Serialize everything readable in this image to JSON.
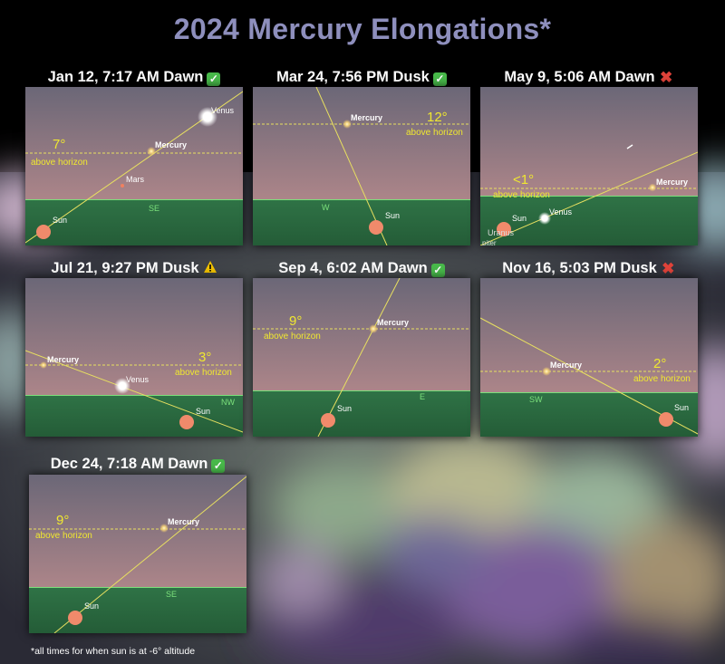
{
  "title": "2024 Mercury Elongations*",
  "footnote": "*all times for  when sun is at -6° altitude",
  "colors": {
    "title": "#8e8fbd",
    "sky_top": "#6c6877",
    "sky_bottom": "#a98589",
    "ground": "#2b6b40",
    "horizon_line": "#7be07b",
    "ecliptic": "#e8e060",
    "sun": "#f08a6b",
    "altitude_label": "#f0e830",
    "ok": "#48b94a",
    "bad": "#e0433a",
    "warn": "#f2c200"
  },
  "panels": [
    {
      "caption": "Jan 12, 7:17 AM Dawn",
      "status": "ok",
      "altitude_value": "7°",
      "altitude_text": "above horizon",
      "direction": "SE",
      "objects": [
        {
          "label": "Venus",
          "kind": "venus"
        },
        {
          "label": "Mercury",
          "kind": "mercury"
        },
        {
          "label": "Mars",
          "kind": "mars"
        },
        {
          "label": "Sun",
          "kind": "sun"
        }
      ]
    },
    {
      "caption": "Mar 24, 7:56 PM Dusk",
      "status": "ok",
      "altitude_value": "12°",
      "altitude_text": "above horizon",
      "direction": "W",
      "objects": [
        {
          "label": "Mercury",
          "kind": "mercury"
        },
        {
          "label": "Sun",
          "kind": "sun"
        }
      ]
    },
    {
      "caption": "May 9, 5:06 AM Dawn",
      "status": "bad",
      "altitude_value": "<1°",
      "altitude_text": "above horizon",
      "direction": "",
      "objects": [
        {
          "label": "Mercury",
          "kind": "mercury"
        },
        {
          "label": "Venus",
          "kind": "venus"
        },
        {
          "label": "Sun",
          "kind": "sun"
        },
        {
          "label": "Uranus",
          "kind": "dim"
        },
        {
          "label": "piter",
          "kind": "dim"
        }
      ]
    },
    {
      "caption": "Jul 21, 9:27 PM Dusk",
      "status": "warn",
      "altitude_value": "3°",
      "altitude_text": "above horizon",
      "direction": "NW",
      "objects": [
        {
          "label": "Mercury",
          "kind": "mercury"
        },
        {
          "label": "Venus",
          "kind": "venus"
        },
        {
          "label": "Sun",
          "kind": "sun"
        }
      ]
    },
    {
      "caption": "Sep 4, 6:02 AM Dawn",
      "status": "ok",
      "altitude_value": "9°",
      "altitude_text": "above horizon",
      "direction": "E",
      "objects": [
        {
          "label": "Mercury",
          "kind": "mercury"
        },
        {
          "label": "Sun",
          "kind": "sun"
        }
      ]
    },
    {
      "caption": "Nov 16, 5:03 PM Dusk",
      "status": "bad",
      "altitude_value": "2°",
      "altitude_text": "above horizon",
      "direction": "SW",
      "objects": [
        {
          "label": "Mercury",
          "kind": "mercury"
        },
        {
          "label": "Sun",
          "kind": "sun"
        }
      ]
    },
    {
      "caption": "Dec 24, 7:18 AM Dawn",
      "status": "ok",
      "altitude_value": "9°",
      "altitude_text": "above horizon",
      "direction": "SE",
      "objects": [
        {
          "label": "Mercury",
          "kind": "mercury"
        },
        {
          "label": "Sun",
          "kind": "sun"
        }
      ]
    }
  ]
}
